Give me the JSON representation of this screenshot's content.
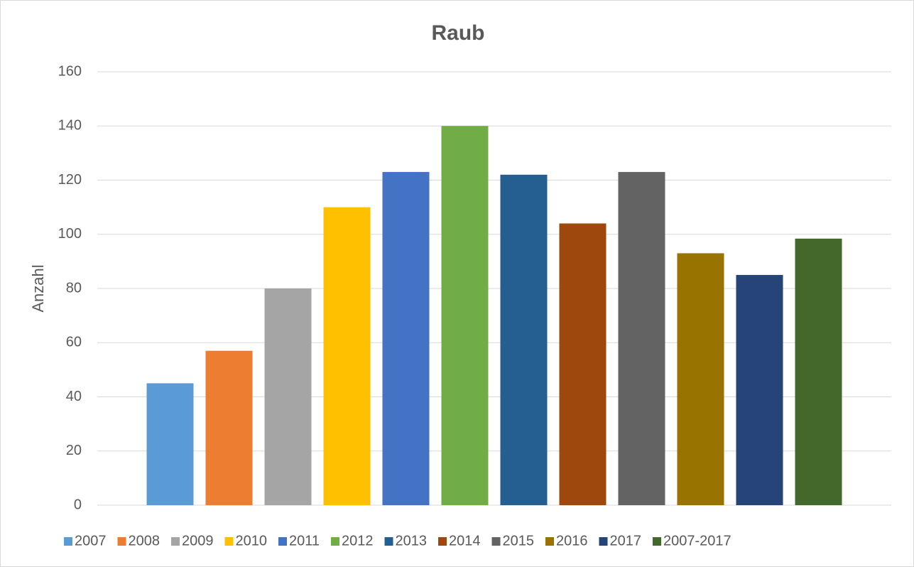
{
  "chart_data": {
    "type": "bar",
    "title": "Raub",
    "y_label": "Anzahl",
    "series": [
      {
        "name": "2007",
        "color": "#5b9bd5",
        "values": [
          45
        ]
      },
      {
        "name": "2008",
        "color": "#ed7d31",
        "values": [
          57
        ]
      },
      {
        "name": "2009",
        "color": "#a5a5a5",
        "values": [
          80
        ]
      },
      {
        "name": "2010",
        "color": "#ffc000",
        "values": [
          110
        ]
      },
      {
        "name": "2011",
        "color": "#4472c4",
        "values": [
          123
        ]
      },
      {
        "name": "2012",
        "color": "#70ad47",
        "values": [
          140
        ]
      },
      {
        "name": "2013",
        "color": "#255e91",
        "values": [
          122
        ]
      },
      {
        "name": "2014",
        "color": "#9e480e",
        "values": [
          104
        ]
      },
      {
        "name": "2015",
        "color": "#636363",
        "values": [
          123
        ]
      },
      {
        "name": "2016",
        "color": "#997300",
        "values": [
          93
        ]
      },
      {
        "name": "2017",
        "color": "#264478",
        "values": [
          85
        ]
      },
      {
        "name": "2007-2017",
        "color": "#43682b",
        "values": [
          98.4
        ]
      }
    ],
    "ylim": [
      0,
      160
    ],
    "yticks": [
      0,
      20,
      40,
      60,
      80,
      100,
      120,
      140,
      160
    ],
    "grid": true,
    "legend": "bottom"
  }
}
